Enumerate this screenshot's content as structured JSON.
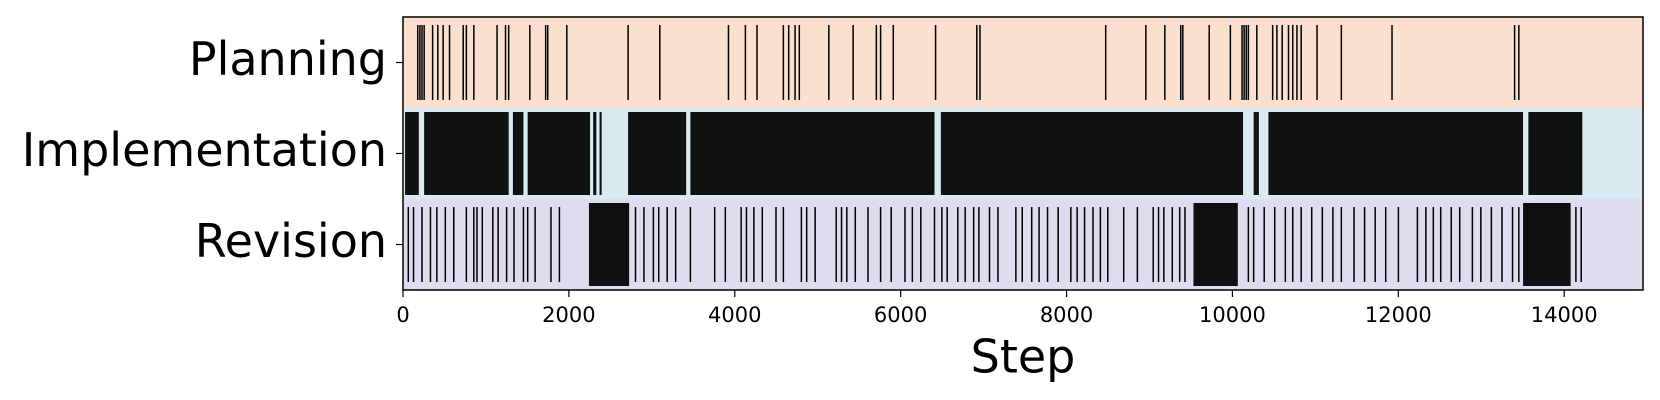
{
  "chart_data": {
    "type": "event",
    "xlabel": "Step",
    "xlim": [
      0,
      14950
    ],
    "xticks": [
      0,
      2000,
      4000,
      6000,
      8000,
      10000,
      12000,
      14000
    ],
    "mark_color": "#000000",
    "series": [
      {
        "name": "Planning",
        "color": "#fbe0d0",
        "events": [
          178,
          204,
          229,
          255,
          357,
          420,
          484,
          561,
          726,
          764,
          854,
          1134,
          1236,
          1274,
          1529,
          1720,
          1745,
          1975,
          2714,
          3096,
          3924,
          4128,
          4268,
          4586,
          4650,
          4727,
          4778,
          5134,
          5427,
          5707,
          5758,
          5911,
          6421,
          6918,
          6956,
          8472,
          8956,
          9185,
          9377,
          9402,
          9720,
          9975,
          10116,
          10141,
          10167,
          10192,
          10294,
          10485,
          10536,
          10600,
          10676,
          10727,
          10778,
          10829,
          11020,
          11313,
          11924,
          13402,
          13453
        ],
        "intervals": []
      },
      {
        "name": "Implementation",
        "color": "#d9eaf0",
        "events": [],
        "intervals": [
          [
            25,
            191
          ],
          [
            255,
            1274
          ],
          [
            1325,
            1452
          ],
          [
            1503,
            2255
          ],
          [
            2293,
            2331
          ],
          [
            2370,
            2395
          ],
          [
            2714,
            3414
          ],
          [
            3465,
            6408
          ],
          [
            6485,
            10128
          ],
          [
            10256,
            10319
          ],
          [
            10434,
            13504
          ],
          [
            13568,
            14218
          ]
        ]
      },
      {
        "name": "Revision",
        "color": "#e0dcf0",
        "events": [
          64,
          127,
          229,
          331,
          408,
          510,
          612,
          764,
          854,
          892,
          956,
          1083,
          1147,
          1249,
          1338,
          1452,
          1503,
          1593,
          1784,
          1886,
          2803,
          2905,
          3019,
          3083,
          3185,
          3287,
          3465,
          3758,
          3886,
          4077,
          4141,
          4230,
          4332,
          4497,
          4586,
          4803,
          4867,
          4969,
          5223,
          5287,
          5351,
          5453,
          5606,
          5758,
          5886,
          6052,
          6141,
          6243,
          6408,
          6497,
          6561,
          6689,
          6778,
          6880,
          6943,
          7071,
          7173,
          7389,
          7466,
          7580,
          7669,
          7771,
          7899,
          8052,
          8128,
          8217,
          8319,
          8408,
          8497,
          8689,
          8854,
          9045,
          9109,
          9173,
          9275,
          9364,
          9428,
          10192,
          10256,
          10383,
          10510,
          10638,
          10727,
          10829,
          10956,
          11084,
          11211,
          11313,
          11466,
          11593,
          11721,
          11848,
          12001,
          12230,
          12332,
          12422,
          12511,
          12638,
          12740,
          12893,
          12995,
          13122,
          13250,
          13377,
          13453,
          14141,
          14205
        ],
        "intervals": [
          [
            2242,
            2726
          ],
          [
            9530,
            10065
          ],
          [
            13504,
            14078
          ]
        ]
      }
    ]
  }
}
